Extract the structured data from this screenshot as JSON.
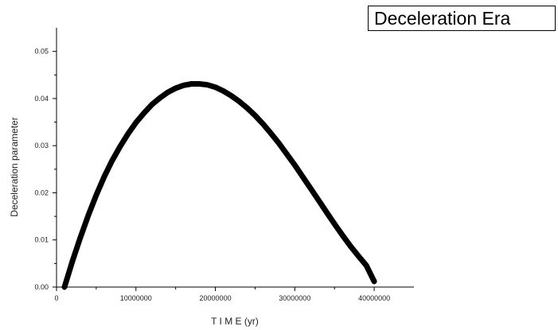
{
  "chart_data": {
    "type": "line",
    "title": "Deceleration Era",
    "xlabel": "T I M E (yr)",
    "ylabel": "Deceleration parameter",
    "xlim": [
      0,
      45000000
    ],
    "ylim": [
      0,
      0.055
    ],
    "x_ticks": [
      0,
      10000000,
      20000000,
      30000000,
      40000000
    ],
    "x_tick_labels": [
      "0",
      "10000000",
      "20000000",
      "30000000",
      "40000000"
    ],
    "y_ticks": [
      0.0,
      0.01,
      0.02,
      0.03,
      0.04,
      0.05
    ],
    "y_tick_labels": [
      "0.00",
      "0.01",
      "0.02",
      "0.03",
      "0.04",
      "0.05"
    ],
    "grid": false,
    "legend": "none",
    "series": [
      {
        "color": "#000000",
        "x": [
          1000000,
          2000000,
          3000000,
          4000000,
          5000000,
          6000000,
          7000000,
          8000000,
          9000000,
          10000000,
          11000000,
          12000000,
          13000000,
          14000000,
          15000000,
          16000000,
          17000000,
          18000000,
          19000000,
          20000000,
          21000000,
          22000000,
          23000000,
          24000000,
          25000000,
          26000000,
          27000000,
          28000000,
          29000000,
          30000000,
          31000000,
          32000000,
          33000000,
          34000000,
          35000000,
          36000000,
          37000000,
          38000000,
          39000000,
          40000000
        ],
        "y": [
          0.0,
          0.0055,
          0.0105,
          0.0152,
          0.0195,
          0.0234,
          0.0268,
          0.0298,
          0.0325,
          0.0349,
          0.0369,
          0.0387,
          0.0401,
          0.0413,
          0.0422,
          0.0428,
          0.0431,
          0.0431,
          0.0429,
          0.0424,
          0.0416,
          0.0406,
          0.0394,
          0.038,
          0.0364,
          0.0346,
          0.0326,
          0.0305,
          0.0282,
          0.0259,
          0.0234,
          0.0209,
          0.0184,
          0.0159,
          0.0134,
          0.011,
          0.0087,
          0.0066,
          0.0046,
          0.0012
        ]
      }
    ]
  }
}
